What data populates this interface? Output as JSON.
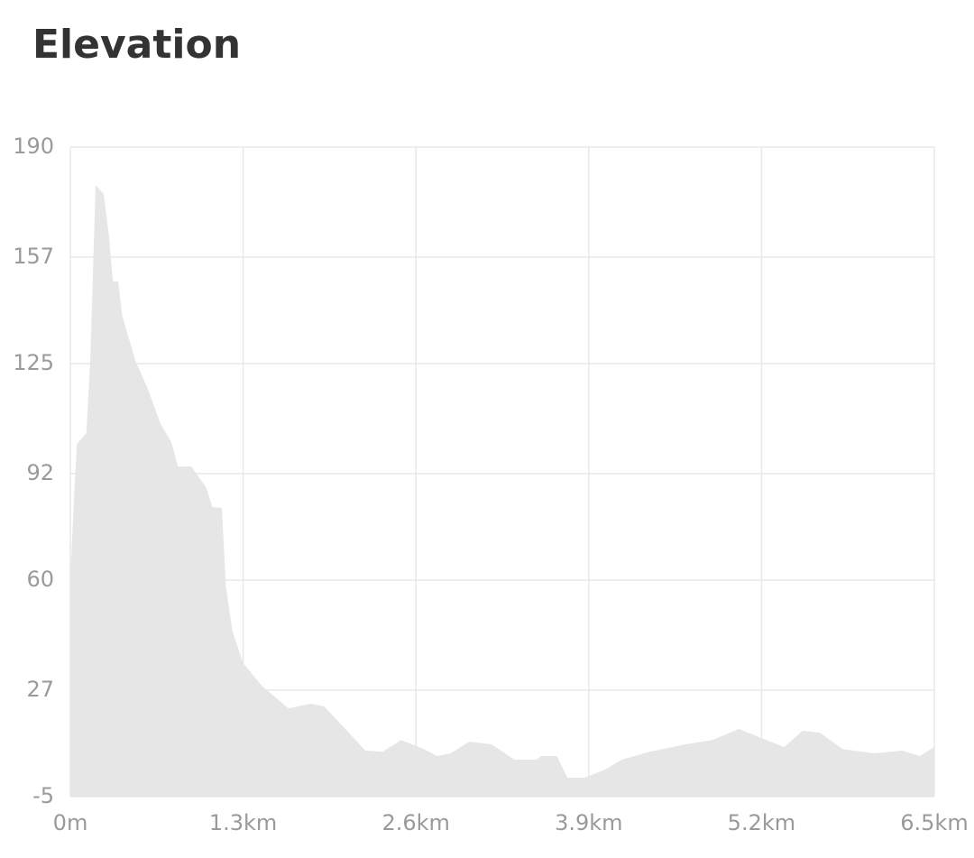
{
  "chart_data": {
    "type": "area",
    "title": "Elevation",
    "color": "#e6e6e6",
    "grid": true,
    "x": [
      0,
      0.03,
      0.05,
      0.12,
      0.15,
      0.19,
      0.25,
      0.29,
      0.32,
      0.36,
      0.39,
      0.49,
      0.58,
      0.68,
      0.76,
      0.81,
      0.91,
      1.02,
      1.07,
      1.14,
      1.17,
      1.22,
      1.3,
      1.44,
      1.64,
      1.81,
      1.91,
      2.05,
      2.22,
      2.35,
      2.49,
      2.66,
      2.76,
      2.86,
      3.0,
      3.17,
      3.34,
      3.51,
      3.54,
      3.66,
      3.74,
      3.87,
      4.02,
      4.15,
      4.36,
      4.63,
      4.83,
      5.03,
      5.2,
      5.37,
      5.51,
      5.64,
      5.81,
      6.05,
      6.26,
      6.39,
      6.5
    ],
    "values": [
      61,
      86.5,
      100.9,
      104.1,
      125.8,
      178.6,
      175.9,
      163.7,
      149.6,
      149.6,
      139.4,
      125.8,
      117.7,
      106.8,
      101.4,
      94.1,
      94.1,
      87.9,
      81.9,
      81.7,
      58.1,
      44.6,
      35.1,
      28.3,
      21.5,
      22.9,
      22.1,
      16.1,
      8.8,
      8.5,
      12.0,
      9.3,
      7.2,
      8.0,
      11.5,
      10.7,
      6.1,
      6.1,
      7.2,
      7.2,
      0.7,
      0.7,
      3.1,
      6.1,
      8.5,
      10.7,
      12.0,
      15.3,
      12.6,
      9.9,
      14.8,
      14.2,
      9.3,
      8.0,
      8.8,
      7.2,
      9.9
    ],
    "xlim": [
      0,
      6.5
    ],
    "xticks": [
      {
        "value": 0,
        "label": "0m"
      },
      {
        "value": 1.3,
        "label": "1.3km"
      },
      {
        "value": 2.6,
        "label": "2.6km"
      },
      {
        "value": 3.9,
        "label": "3.9km"
      },
      {
        "value": 5.2,
        "label": "5.2km"
      },
      {
        "value": 6.5,
        "label": "6.5km"
      }
    ],
    "ylim": [
      -5,
      190
    ],
    "yticks": [
      -5,
      27,
      60,
      92,
      125,
      157,
      190
    ]
  }
}
